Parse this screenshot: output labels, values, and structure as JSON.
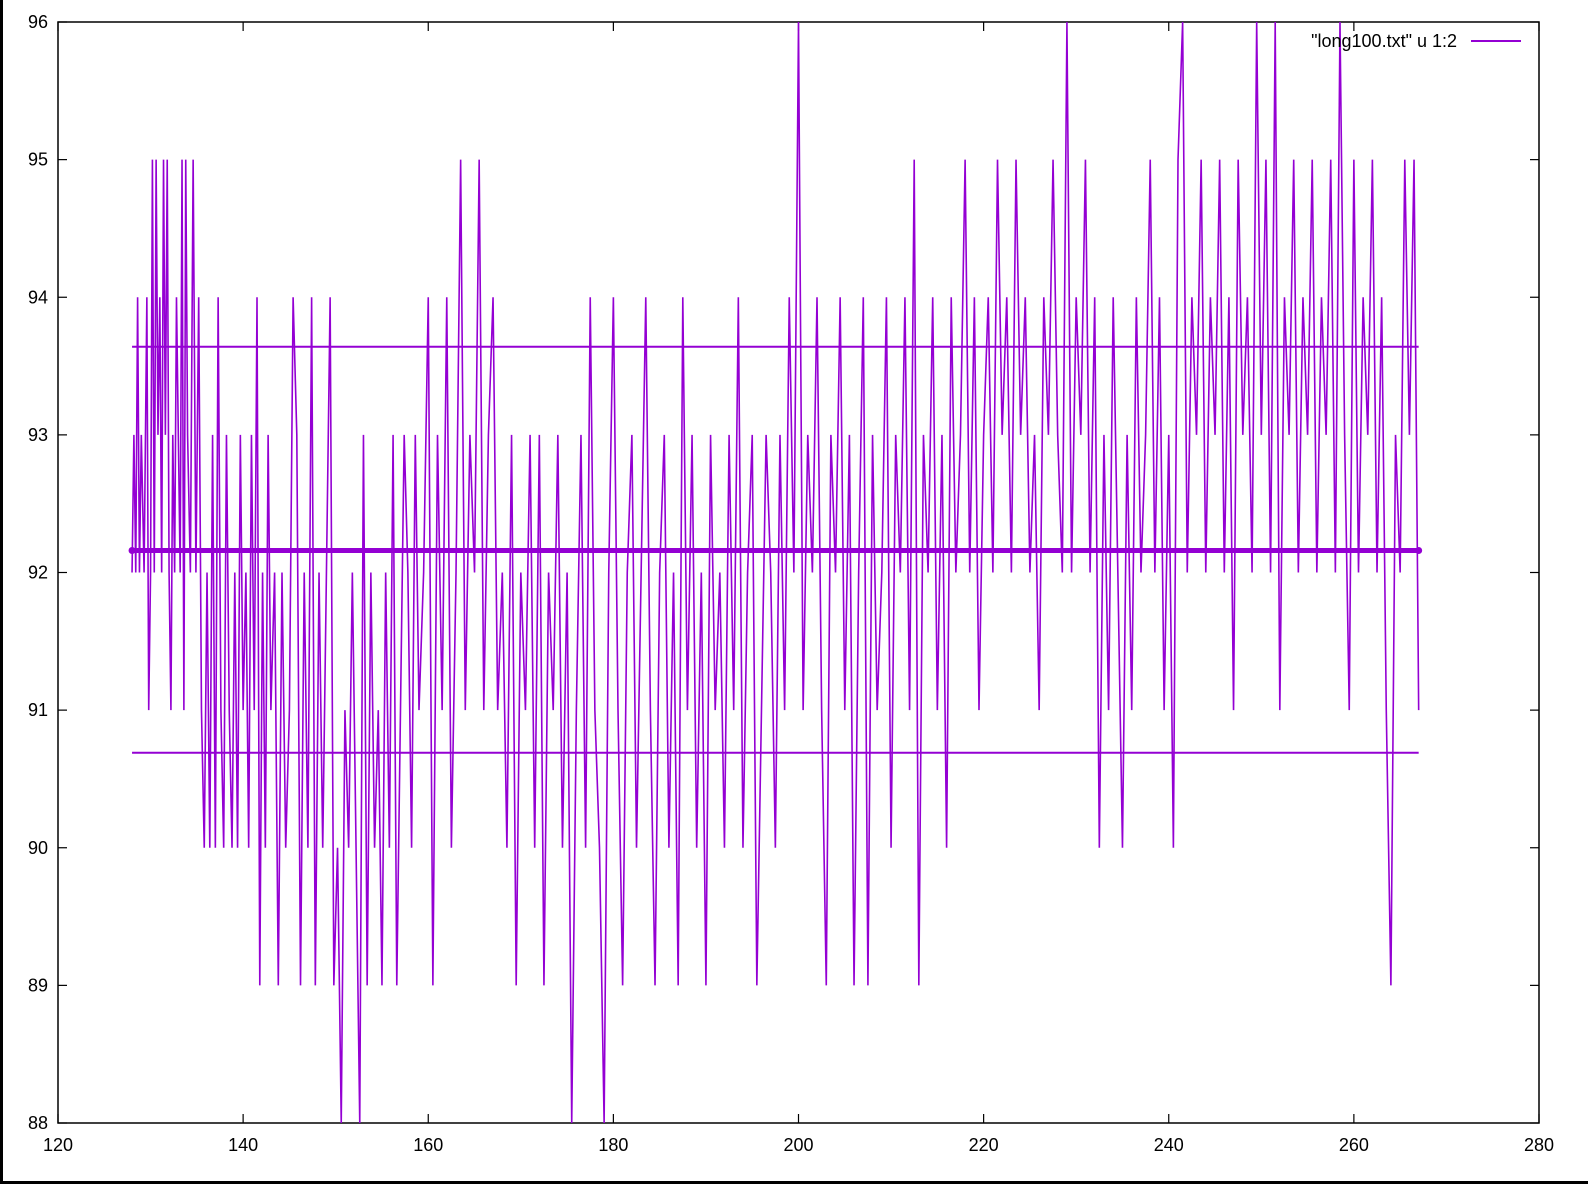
{
  "chart_data": {
    "type": "line",
    "title": "",
    "xlabel": "",
    "ylabel": "",
    "xlim": [
      120,
      280
    ],
    "ylim": [
      88,
      96
    ],
    "x_ticks": [
      120,
      140,
      160,
      180,
      200,
      220,
      240,
      260,
      280
    ],
    "y_ticks": [
      88,
      89,
      90,
      91,
      92,
      93,
      94,
      95,
      96
    ],
    "grid": false,
    "legend_position": "top-right",
    "line_color": "#9400d3",
    "series": [
      {
        "name": "\"long100.txt\" u 1:2",
        "x_range": [
          128,
          267
        ],
        "note_style": "dense step-like noisy series",
        "points": [
          [
            128.0,
            92
          ],
          [
            128.2,
            93
          ],
          [
            128.4,
            92
          ],
          [
            128.6,
            94
          ],
          [
            128.8,
            92
          ],
          [
            129.0,
            93
          ],
          [
            129.3,
            92
          ],
          [
            129.6,
            94
          ],
          [
            129.8,
            91
          ],
          [
            130.0,
            92
          ],
          [
            130.2,
            95
          ],
          [
            130.4,
            92
          ],
          [
            130.6,
            95
          ],
          [
            130.8,
            93
          ],
          [
            131.0,
            94
          ],
          [
            131.2,
            92
          ],
          [
            131.4,
            95
          ],
          [
            131.6,
            93
          ],
          [
            131.8,
            95
          ],
          [
            132.0,
            92
          ],
          [
            132.2,
            91
          ],
          [
            132.4,
            93
          ],
          [
            132.6,
            92
          ],
          [
            132.8,
            94
          ],
          [
            133.0,
            93
          ],
          [
            133.2,
            92
          ],
          [
            133.4,
            95
          ],
          [
            133.6,
            91
          ],
          [
            133.8,
            95
          ],
          [
            134.0,
            93
          ],
          [
            134.3,
            92
          ],
          [
            134.6,
            95
          ],
          [
            134.9,
            92
          ],
          [
            135.2,
            94
          ],
          [
            135.5,
            91
          ],
          [
            135.8,
            90
          ],
          [
            136.1,
            92
          ],
          [
            136.4,
            90
          ],
          [
            136.7,
            93
          ],
          [
            137.0,
            90
          ],
          [
            137.3,
            94
          ],
          [
            137.6,
            91
          ],
          [
            137.9,
            90
          ],
          [
            138.2,
            93
          ],
          [
            138.5,
            91
          ],
          [
            138.8,
            90
          ],
          [
            139.1,
            92
          ],
          [
            139.4,
            90
          ],
          [
            139.7,
            93
          ],
          [
            140.0,
            91
          ],
          [
            140.3,
            92
          ],
          [
            140.6,
            90
          ],
          [
            140.9,
            93
          ],
          [
            141.2,
            91
          ],
          [
            141.5,
            94
          ],
          [
            141.8,
            89
          ],
          [
            142.1,
            92
          ],
          [
            142.4,
            90
          ],
          [
            142.7,
            93
          ],
          [
            143.0,
            91
          ],
          [
            143.4,
            92
          ],
          [
            143.8,
            89
          ],
          [
            144.2,
            92
          ],
          [
            144.6,
            90
          ],
          [
            145.0,
            91
          ],
          [
            145.4,
            94
          ],
          [
            145.8,
            93
          ],
          [
            146.2,
            89
          ],
          [
            146.6,
            92
          ],
          [
            147.0,
            90
          ],
          [
            147.4,
            94
          ],
          [
            147.8,
            89
          ],
          [
            148.2,
            92
          ],
          [
            148.6,
            90
          ],
          [
            149.0,
            92
          ],
          [
            149.4,
            94
          ],
          [
            149.8,
            89
          ],
          [
            150.2,
            90
          ],
          [
            150.6,
            88
          ],
          [
            151.0,
            91
          ],
          [
            151.4,
            90
          ],
          [
            151.8,
            92
          ],
          [
            152.2,
            90
          ],
          [
            152.6,
            88
          ],
          [
            153.0,
            93
          ],
          [
            153.4,
            89
          ],
          [
            153.8,
            92
          ],
          [
            154.2,
            90
          ],
          [
            154.6,
            91
          ],
          [
            155.0,
            89
          ],
          [
            155.4,
            92
          ],
          [
            155.8,
            90
          ],
          [
            156.2,
            93
          ],
          [
            156.6,
            89
          ],
          [
            157.0,
            91
          ],
          [
            157.4,
            93
          ],
          [
            157.8,
            92
          ],
          [
            158.2,
            90
          ],
          [
            158.6,
            93
          ],
          [
            159.0,
            91
          ],
          [
            159.5,
            92
          ],
          [
            160.0,
            94
          ],
          [
            160.5,
            89
          ],
          [
            161.0,
            93
          ],
          [
            161.5,
            91
          ],
          [
            162.0,
            94
          ],
          [
            162.5,
            90
          ],
          [
            163.0,
            92
          ],
          [
            163.5,
            95
          ],
          [
            164.0,
            91
          ],
          [
            164.5,
            93
          ],
          [
            165.0,
            92
          ],
          [
            165.5,
            95
          ],
          [
            166.0,
            91
          ],
          [
            166.5,
            93
          ],
          [
            167.0,
            94
          ],
          [
            167.5,
            91
          ],
          [
            168.0,
            92
          ],
          [
            168.5,
            90
          ],
          [
            169.0,
            93
          ],
          [
            169.5,
            89
          ],
          [
            170.0,
            92
          ],
          [
            170.5,
            91
          ],
          [
            171.0,
            93
          ],
          [
            171.5,
            90
          ],
          [
            172.0,
            93
          ],
          [
            172.5,
            89
          ],
          [
            173.0,
            92
          ],
          [
            173.5,
            91
          ],
          [
            174.0,
            93
          ],
          [
            174.5,
            90
          ],
          [
            175.0,
            92
          ],
          [
            175.5,
            88
          ],
          [
            176.0,
            91
          ],
          [
            176.5,
            93
          ],
          [
            177.0,
            90
          ],
          [
            177.5,
            94
          ],
          [
            178.0,
            91
          ],
          [
            178.5,
            90
          ],
          [
            179.0,
            88
          ],
          [
            179.5,
            92
          ],
          [
            180.0,
            94
          ],
          [
            180.5,
            91
          ],
          [
            181.0,
            89
          ],
          [
            181.5,
            92
          ],
          [
            182.0,
            93
          ],
          [
            182.5,
            90
          ],
          [
            183.0,
            92
          ],
          [
            183.5,
            94
          ],
          [
            184.0,
            91
          ],
          [
            184.5,
            89
          ],
          [
            185.0,
            92
          ],
          [
            185.5,
            93
          ],
          [
            186.0,
            90
          ],
          [
            186.5,
            92
          ],
          [
            187.0,
            89
          ],
          [
            187.5,
            94
          ],
          [
            188.0,
            91
          ],
          [
            188.5,
            93
          ],
          [
            189.0,
            90
          ],
          [
            189.5,
            92
          ],
          [
            190.0,
            89
          ],
          [
            190.5,
            93
          ],
          [
            191.0,
            91
          ],
          [
            191.5,
            92
          ],
          [
            192.0,
            90
          ],
          [
            192.5,
            93
          ],
          [
            193.0,
            91
          ],
          [
            193.5,
            94
          ],
          [
            194.0,
            90
          ],
          [
            194.5,
            92
          ],
          [
            195.0,
            93
          ],
          [
            195.5,
            89
          ],
          [
            196.0,
            91
          ],
          [
            196.5,
            93
          ],
          [
            197.0,
            92
          ],
          [
            197.5,
            90
          ],
          [
            198.0,
            93
          ],
          [
            198.5,
            91
          ],
          [
            199.0,
            94
          ],
          [
            199.5,
            92
          ],
          [
            200.0,
            96
          ],
          [
            200.5,
            91
          ],
          [
            201.0,
            93
          ],
          [
            201.5,
            92
          ],
          [
            202.0,
            94
          ],
          [
            202.5,
            91
          ],
          [
            203.0,
            89
          ],
          [
            203.5,
            93
          ],
          [
            204.0,
            92
          ],
          [
            204.5,
            94
          ],
          [
            205.0,
            91
          ],
          [
            205.5,
            93
          ],
          [
            206.0,
            89
          ],
          [
            206.5,
            92
          ],
          [
            207.0,
            94
          ],
          [
            207.5,
            89
          ],
          [
            208.0,
            93
          ],
          [
            208.5,
            91
          ],
          [
            209.0,
            92
          ],
          [
            209.5,
            94
          ],
          [
            210.0,
            90
          ],
          [
            210.5,
            93
          ],
          [
            211.0,
            92
          ],
          [
            211.5,
            94
          ],
          [
            212.0,
            91
          ],
          [
            212.5,
            95
          ],
          [
            213.0,
            89
          ],
          [
            213.5,
            93
          ],
          [
            214.0,
            92
          ],
          [
            214.5,
            94
          ],
          [
            215.0,
            91
          ],
          [
            215.5,
            93
          ],
          [
            216.0,
            90
          ],
          [
            216.5,
            94
          ],
          [
            217.0,
            92
          ],
          [
            217.5,
            93
          ],
          [
            218.0,
            95
          ],
          [
            218.5,
            92
          ],
          [
            219.0,
            94
          ],
          [
            219.5,
            91
          ],
          [
            220.0,
            93
          ],
          [
            220.5,
            94
          ],
          [
            221.0,
            92
          ],
          [
            221.5,
            95
          ],
          [
            222.0,
            93
          ],
          [
            222.5,
            94
          ],
          [
            223.0,
            92
          ],
          [
            223.5,
            95
          ],
          [
            224.0,
            93
          ],
          [
            224.5,
            94
          ],
          [
            225.0,
            92
          ],
          [
            225.5,
            93
          ],
          [
            226.0,
            91
          ],
          [
            226.5,
            94
          ],
          [
            227.0,
            93
          ],
          [
            227.5,
            95
          ],
          [
            228.0,
            93
          ],
          [
            228.5,
            92
          ],
          [
            229.0,
            96
          ],
          [
            229.5,
            92
          ],
          [
            230.0,
            94
          ],
          [
            230.5,
            93
          ],
          [
            231.0,
            95
          ],
          [
            231.5,
            92
          ],
          [
            232.0,
            94
          ],
          [
            232.5,
            90
          ],
          [
            233.0,
            93
          ],
          [
            233.5,
            91
          ],
          [
            234.0,
            94
          ],
          [
            234.5,
            92
          ],
          [
            235.0,
            90
          ],
          [
            235.5,
            93
          ],
          [
            236.0,
            91
          ],
          [
            236.5,
            94
          ],
          [
            237.0,
            92
          ],
          [
            237.5,
            93
          ],
          [
            238.0,
            95
          ],
          [
            238.5,
            92
          ],
          [
            239.0,
            94
          ],
          [
            239.5,
            91
          ],
          [
            240.0,
            93
          ],
          [
            240.5,
            90
          ],
          [
            241.0,
            95
          ],
          [
            241.5,
            96
          ],
          [
            242.0,
            92
          ],
          [
            242.5,
            94
          ],
          [
            243.0,
            93
          ],
          [
            243.5,
            95
          ],
          [
            244.0,
            92
          ],
          [
            244.5,
            94
          ],
          [
            245.0,
            93
          ],
          [
            245.5,
            95
          ],
          [
            246.0,
            92
          ],
          [
            246.5,
            94
          ],
          [
            247.0,
            91
          ],
          [
            247.5,
            95
          ],
          [
            248.0,
            93
          ],
          [
            248.5,
            94
          ],
          [
            249.0,
            92
          ],
          [
            249.5,
            96
          ],
          [
            250.0,
            93
          ],
          [
            250.5,
            95
          ],
          [
            251.0,
            92
          ],
          [
            251.5,
            96
          ],
          [
            252.0,
            91
          ],
          [
            252.5,
            94
          ],
          [
            253.0,
            93
          ],
          [
            253.5,
            95
          ],
          [
            254.0,
            92
          ],
          [
            254.5,
            94
          ],
          [
            255.0,
            93
          ],
          [
            255.5,
            95
          ],
          [
            256.0,
            92
          ],
          [
            256.5,
            94
          ],
          [
            257.0,
            93
          ],
          [
            257.5,
            95
          ],
          [
            258.0,
            92
          ],
          [
            258.5,
            96
          ],
          [
            259.0,
            93
          ],
          [
            259.5,
            91
          ],
          [
            260.0,
            95
          ],
          [
            260.5,
            92
          ],
          [
            261.0,
            94
          ],
          [
            261.5,
            93
          ],
          [
            262.0,
            95
          ],
          [
            262.5,
            92
          ],
          [
            263.0,
            94
          ],
          [
            263.5,
            91
          ],
          [
            264.0,
            89
          ],
          [
            264.5,
            93
          ],
          [
            265.0,
            92
          ],
          [
            265.5,
            95
          ],
          [
            266.0,
            93
          ],
          [
            266.5,
            95
          ],
          [
            267.0,
            91
          ]
        ]
      }
    ],
    "reference_lines": [
      {
        "y": 92.16,
        "x_range": [
          128,
          267
        ],
        "style": "thick"
      },
      {
        "y": 93.64,
        "x_range": [
          128,
          267
        ],
        "style": "thin"
      },
      {
        "y": 90.69,
        "x_range": [
          128,
          267
        ],
        "style": "thin"
      }
    ]
  }
}
